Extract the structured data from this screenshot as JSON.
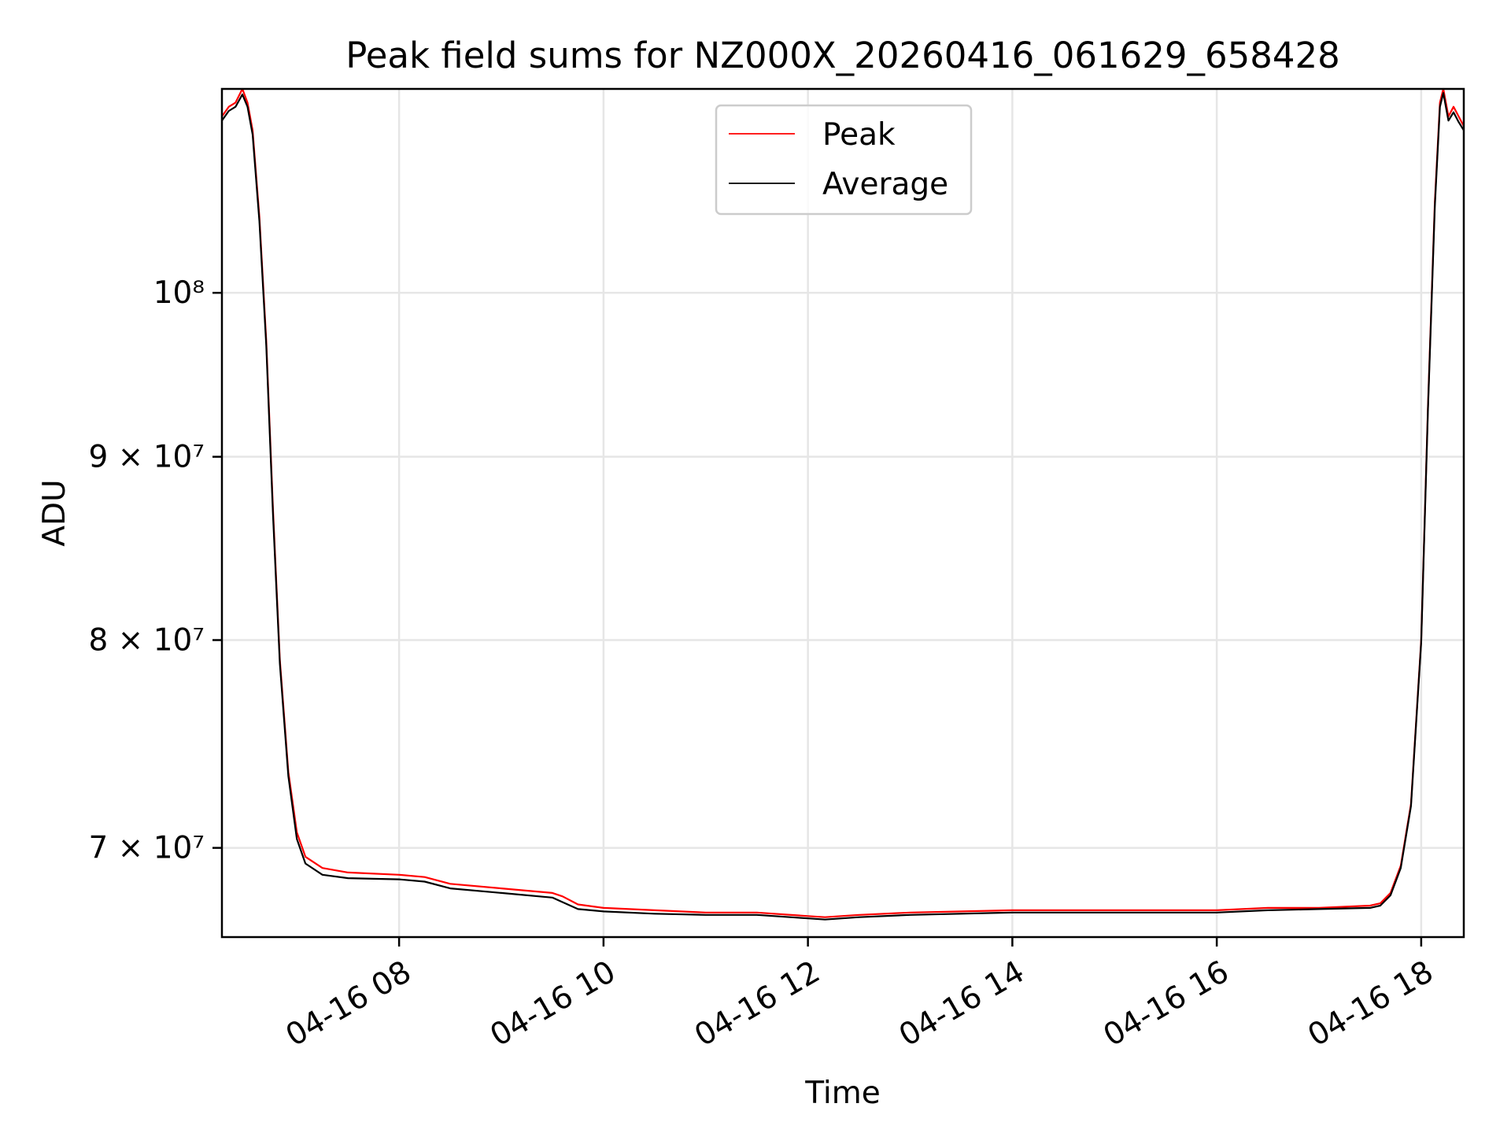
{
  "chart_data": {
    "type": "line",
    "title": "Peak field sums for NZ000X_20260416_061629_658428",
    "xlabel": "Time",
    "ylabel": "ADU",
    "x_axis": {
      "scale": "time",
      "xlim": [
        "2026-04-16 06:16",
        "2026-04-16 18:25"
      ],
      "ticks": [
        {
          "value": "2026-04-16 08:00",
          "label": "04-16 08"
        },
        {
          "value": "2026-04-16 10:00",
          "label": "04-16 10"
        },
        {
          "value": "2026-04-16 12:00",
          "label": "04-16 12"
        },
        {
          "value": "2026-04-16 14:00",
          "label": "04-16 14"
        },
        {
          "value": "2026-04-16 16:00",
          "label": "04-16 16"
        },
        {
          "value": "2026-04-16 18:00",
          "label": "04-16 18"
        }
      ]
    },
    "y_axis": {
      "scale": "log",
      "ylim": [
        66100000,
        114000000
      ],
      "ticks": [
        {
          "value": 70000000,
          "label": "7 × 10⁷"
        },
        {
          "value": 80000000,
          "label": "8 × 10⁷"
        },
        {
          "value": 90000000,
          "label": "9 × 10⁷"
        },
        {
          "value": 100000000,
          "label": "10⁸"
        }
      ]
    },
    "grid": true,
    "legend": {
      "position": "top-center"
    },
    "series": [
      {
        "name": "Peak",
        "color": "#ff0000",
        "points": [
          [
            "2026-04-16 06:16",
            112000000
          ],
          [
            "2026-04-16 06:20",
            112700000
          ],
          [
            "2026-04-16 06:24",
            113000000
          ],
          [
            "2026-04-16 06:28",
            114000000
          ],
          [
            "2026-04-16 06:31",
            113000000
          ],
          [
            "2026-04-16 06:34",
            111000000
          ],
          [
            "2026-04-16 06:38",
            105000000
          ],
          [
            "2026-04-16 06:42",
            97000000
          ],
          [
            "2026-04-16 06:46",
            87000000
          ],
          [
            "2026-04-16 06:50",
            79000000
          ],
          [
            "2026-04-16 06:55",
            73500000
          ],
          [
            "2026-04-16 07:00",
            70700000
          ],
          [
            "2026-04-16 07:05",
            69600000
          ],
          [
            "2026-04-16 07:15",
            69100000
          ],
          [
            "2026-04-16 07:30",
            68900000
          ],
          [
            "2026-04-16 08:00",
            68800000
          ],
          [
            "2026-04-16 08:15",
            68700000
          ],
          [
            "2026-04-16 08:30",
            68400000
          ],
          [
            "2026-04-16 09:00",
            68200000
          ],
          [
            "2026-04-16 09:30",
            68000000
          ],
          [
            "2026-04-16 09:36",
            67850000
          ],
          [
            "2026-04-16 09:45",
            67500000
          ],
          [
            "2026-04-16 10:00",
            67350000
          ],
          [
            "2026-04-16 10:30",
            67250000
          ],
          [
            "2026-04-16 11:00",
            67150000
          ],
          [
            "2026-04-16 11:30",
            67150000
          ],
          [
            "2026-04-16 12:00",
            67000000
          ],
          [
            "2026-04-16 12:10",
            66950000
          ],
          [
            "2026-04-16 12:30",
            67050000
          ],
          [
            "2026-04-16 13:00",
            67150000
          ],
          [
            "2026-04-16 14:00",
            67250000
          ],
          [
            "2026-04-16 15:00",
            67250000
          ],
          [
            "2026-04-16 16:00",
            67250000
          ],
          [
            "2026-04-16 16:30",
            67350000
          ],
          [
            "2026-04-16 17:00",
            67350000
          ],
          [
            "2026-04-16 17:30",
            67450000
          ],
          [
            "2026-04-16 17:36",
            67550000
          ],
          [
            "2026-04-16 17:42",
            68000000
          ],
          [
            "2026-04-16 17:48",
            69200000
          ],
          [
            "2026-04-16 17:54",
            72000000
          ],
          [
            "2026-04-16 18:00",
            80000000
          ],
          [
            "2026-04-16 18:04",
            93000000
          ],
          [
            "2026-04-16 18:08",
            106000000
          ],
          [
            "2026-04-16 18:11",
            113000000
          ],
          [
            "2026-04-16 18:13",
            114000000
          ],
          [
            "2026-04-16 18:16",
            112000000
          ],
          [
            "2026-04-16 18:19",
            112700000
          ],
          [
            "2026-04-16 18:22",
            112000000
          ],
          [
            "2026-04-16 18:25",
            111300000
          ]
        ]
      },
      {
        "name": "Average",
        "color": "#000000",
        "points": [
          [
            "2026-04-16 06:16",
            111700000
          ],
          [
            "2026-04-16 06:20",
            112400000
          ],
          [
            "2026-04-16 06:24",
            112700000
          ],
          [
            "2026-04-16 06:28",
            113600000
          ],
          [
            "2026-04-16 06:31",
            112700000
          ],
          [
            "2026-04-16 06:34",
            110700000
          ],
          [
            "2026-04-16 06:38",
            104700000
          ],
          [
            "2026-04-16 06:42",
            96700000
          ],
          [
            "2026-04-16 06:46",
            86700000
          ],
          [
            "2026-04-16 06:50",
            78800000
          ],
          [
            "2026-04-16 06:55",
            73300000
          ],
          [
            "2026-04-16 07:00",
            70400000
          ],
          [
            "2026-04-16 07:05",
            69300000
          ],
          [
            "2026-04-16 07:15",
            68800000
          ],
          [
            "2026-04-16 07:30",
            68650000
          ],
          [
            "2026-04-16 08:00",
            68600000
          ],
          [
            "2026-04-16 08:15",
            68500000
          ],
          [
            "2026-04-16 08:30",
            68200000
          ],
          [
            "2026-04-16 09:00",
            68000000
          ],
          [
            "2026-04-16 09:30",
            67800000
          ],
          [
            "2026-04-16 09:36",
            67600000
          ],
          [
            "2026-04-16 09:45",
            67300000
          ],
          [
            "2026-04-16 10:00",
            67200000
          ],
          [
            "2026-04-16 10:30",
            67100000
          ],
          [
            "2026-04-16 11:00",
            67050000
          ],
          [
            "2026-04-16 11:30",
            67050000
          ],
          [
            "2026-04-16 12:00",
            66900000
          ],
          [
            "2026-04-16 12:10",
            66850000
          ],
          [
            "2026-04-16 12:30",
            66950000
          ],
          [
            "2026-04-16 13:00",
            67050000
          ],
          [
            "2026-04-16 14:00",
            67150000
          ],
          [
            "2026-04-16 15:00",
            67150000
          ],
          [
            "2026-04-16 16:00",
            67150000
          ],
          [
            "2026-04-16 16:30",
            67250000
          ],
          [
            "2026-04-16 17:00",
            67300000
          ],
          [
            "2026-04-16 17:30",
            67350000
          ],
          [
            "2026-04-16 17:36",
            67450000
          ],
          [
            "2026-04-16 17:42",
            67900000
          ],
          [
            "2026-04-16 17:48",
            69100000
          ],
          [
            "2026-04-16 17:54",
            71900000
          ],
          [
            "2026-04-16 18:00",
            79900000
          ],
          [
            "2026-04-16 18:04",
            92800000
          ],
          [
            "2026-04-16 18:08",
            105700000
          ],
          [
            "2026-04-16 18:11",
            112700000
          ],
          [
            "2026-04-16 18:13",
            113700000
          ],
          [
            "2026-04-16 18:16",
            111700000
          ],
          [
            "2026-04-16 18:19",
            112300000
          ],
          [
            "2026-04-16 18:22",
            111600000
          ],
          [
            "2026-04-16 18:25",
            111000000
          ]
        ]
      }
    ]
  }
}
